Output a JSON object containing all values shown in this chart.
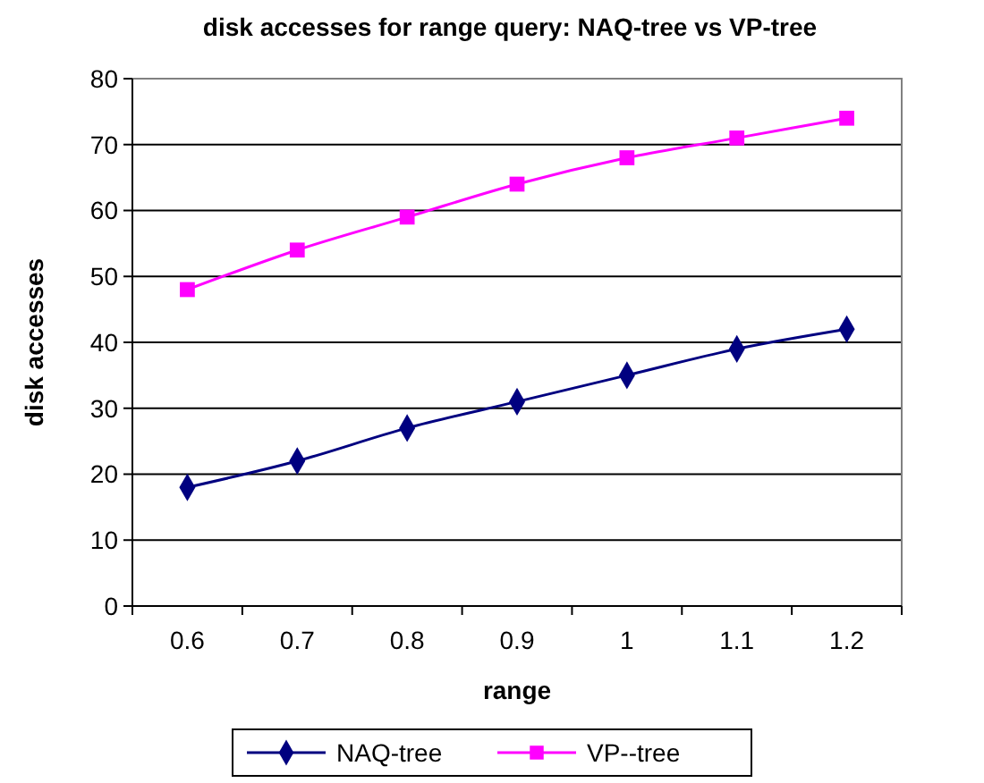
{
  "chart_data": {
    "type": "line",
    "title": "disk accesses for range query: NAQ-tree  vs  VP-tree",
    "xlabel": "range",
    "ylabel": "disk accesses",
    "categories": [
      "0.6",
      "0.7",
      "0.8",
      "0.9",
      "1",
      "1.1",
      "1.2"
    ],
    "series": [
      {
        "name": "NAQ-tree",
        "color": "#000080",
        "marker": "diamond",
        "values": [
          18,
          22,
          27,
          31,
          35,
          39,
          42
        ]
      },
      {
        "name": "VP--tree",
        "color": "#ff00ff",
        "marker": "square",
        "values": [
          48,
          54,
          59,
          64,
          68,
          71,
          74
        ]
      }
    ],
    "ylim": [
      0,
      80
    ],
    "yticks": [
      0,
      10,
      20,
      30,
      40,
      50,
      60,
      70,
      80
    ],
    "grid": "y",
    "legend": "bottom"
  }
}
